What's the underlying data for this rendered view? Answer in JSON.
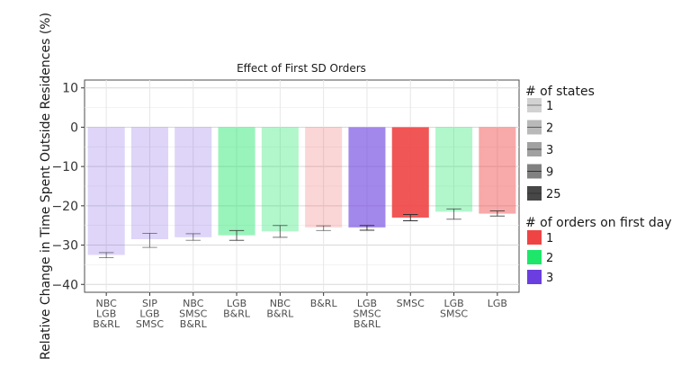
{
  "chart_data": {
    "type": "bar",
    "title": "Effect of First SD Orders",
    "xlabel": "",
    "ylabel": "Relative Change in Time Spent Outside Residences (%)",
    "ylim": [
      -42,
      12
    ],
    "yticks": [
      10,
      0,
      -10,
      -20,
      -30,
      -40
    ],
    "grid": true,
    "categories": [
      [
        "NBC",
        "LGB",
        "B&RL"
      ],
      [
        "SIP",
        "LGB",
        "SMSC"
      ],
      [
        "NBC",
        "SMSC",
        "B&RL"
      ],
      [
        "LGB",
        "B&RL"
      ],
      [
        "NBC",
        "B&RL"
      ],
      [
        "B&RL"
      ],
      [
        "LGB",
        "SMSC",
        "B&RL"
      ],
      [
        "SMSC"
      ],
      [
        "LGB",
        "SMSC"
      ],
      [
        "LGB"
      ]
    ],
    "values": [
      -32.5,
      -28.5,
      -28.0,
      -27.5,
      -26.5,
      -25.5,
      -25.5,
      -23.0,
      -21.5,
      -22.0
    ],
    "orders_on_first_day": [
      3,
      3,
      3,
      2,
      2,
      1,
      3,
      1,
      2,
      1
    ],
    "num_states": [
      1,
      1,
      1,
      3,
      2,
      1,
      9,
      25,
      2,
      3
    ],
    "error_bars": [
      [
        -33.2,
        -31.9
      ],
      [
        -30.6,
        -27.0
      ],
      [
        -28.8,
        -27.1
      ],
      [
        -28.8,
        -26.3
      ],
      [
        -28.0,
        -25.0
      ],
      [
        -26.3,
        -25.1
      ],
      [
        -26.2,
        -25.0
      ],
      [
        -23.8,
        -22.2
      ],
      [
        -23.4,
        -20.8
      ],
      [
        -22.6,
        -21.3
      ]
    ],
    "legend": {
      "placement": "right",
      "states_title": "# of states",
      "states_entries": [
        {
          "label": "1",
          "alpha": 0.22
        },
        {
          "label": "2",
          "alpha": 0.34
        },
        {
          "label": "3",
          "alpha": 0.46
        },
        {
          "label": "9",
          "alpha": 0.62
        },
        {
          "label": "25",
          "alpha": 0.9
        }
      ],
      "orders_title": "# of orders on first day",
      "orders_entries": [
        {
          "label": "1",
          "color": "#ef4444"
        },
        {
          "label": "2",
          "color": "#1ee66a"
        },
        {
          "label": "3",
          "color": "#6b3fdf"
        }
      ]
    }
  }
}
